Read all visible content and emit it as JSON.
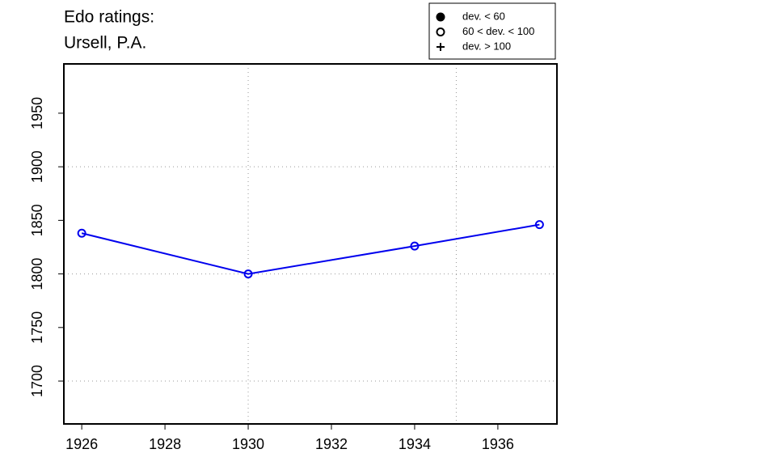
{
  "chart_data": {
    "type": "line",
    "title": [
      "Edo ratings:",
      "Ursell, P.A."
    ],
    "x": [
      1926,
      1930,
      1934,
      1937
    ],
    "series": [
      {
        "color": "#0000ee",
        "marker": "open-circle",
        "values": [
          1838,
          1800,
          1826,
          1846
        ]
      }
    ],
    "xlim": [
      1925.57,
      1937.42
    ],
    "ylim": [
      1660,
      1996
    ],
    "xticks": [
      1926,
      1928,
      1930,
      1932,
      1934,
      1936
    ],
    "yticks": [
      1700,
      1750,
      1800,
      1850,
      1900,
      1950
    ],
    "xgrid": [
      1930,
      1935
    ],
    "ygrid": [
      1700,
      1800,
      1900
    ],
    "legend": [
      {
        "label": "dev. < 60",
        "symbol": "filled-circle"
      },
      {
        "label": "60 < dev. < 100",
        "symbol": "open-circle"
      },
      {
        "label": "dev. > 100",
        "symbol": "plus"
      }
    ],
    "legend_position": "top-right"
  }
}
